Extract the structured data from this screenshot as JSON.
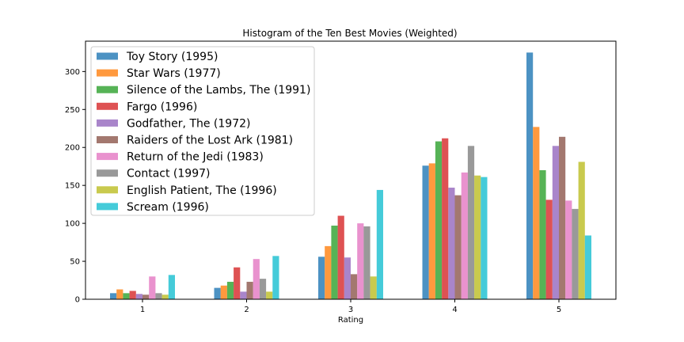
{
  "chart_data": {
    "type": "bar",
    "title": "Histogram of the Ten Best Movies (Weighted)",
    "xlabel": "Rating",
    "ylabel": "",
    "ylim": [
      0,
      340
    ],
    "yticks": [
      0,
      50,
      100,
      150,
      200,
      250,
      300
    ],
    "categories": [
      "1",
      "2",
      "3",
      "4",
      "5"
    ],
    "legend_position": "top-left",
    "series": [
      {
        "name": "Toy Story (1995)",
        "color": "#1f77b4",
        "values": [
          8,
          15,
          56,
          176,
          325
        ]
      },
      {
        "name": "Star Wars (1977)",
        "color": "#ff7f0e",
        "values": [
          13,
          18,
          70,
          179,
          227
        ]
      },
      {
        "name": "Silence of the Lambs, The (1991)",
        "color": "#2ca02c",
        "values": [
          8,
          23,
          97,
          208,
          170
        ]
      },
      {
        "name": "Fargo (1996)",
        "color": "#d62728",
        "values": [
          11,
          42,
          110,
          212,
          131
        ]
      },
      {
        "name": "Godfather, The (1972)",
        "color": "#9467bd",
        "values": [
          7,
          10,
          55,
          147,
          202
        ]
      },
      {
        "name": "Raiders of the Lost Ark (1981)",
        "color": "#8c564b",
        "values": [
          6,
          23,
          33,
          137,
          214
        ]
      },
      {
        "name": "Return of the Jedi (1983)",
        "color": "#e377c2",
        "values": [
          30,
          53,
          100,
          167,
          130
        ]
      },
      {
        "name": "Contact (1997)",
        "color": "#7f7f7f",
        "values": [
          8,
          27,
          96,
          202,
          119
        ]
      },
      {
        "name": "English Patient, The (1996)",
        "color": "#bcbd22",
        "values": [
          6,
          10,
          30,
          163,
          181
        ]
      },
      {
        "name": "Scream (1996)",
        "color": "#17becf",
        "values": [
          32,
          57,
          144,
          161,
          84
        ]
      }
    ]
  }
}
